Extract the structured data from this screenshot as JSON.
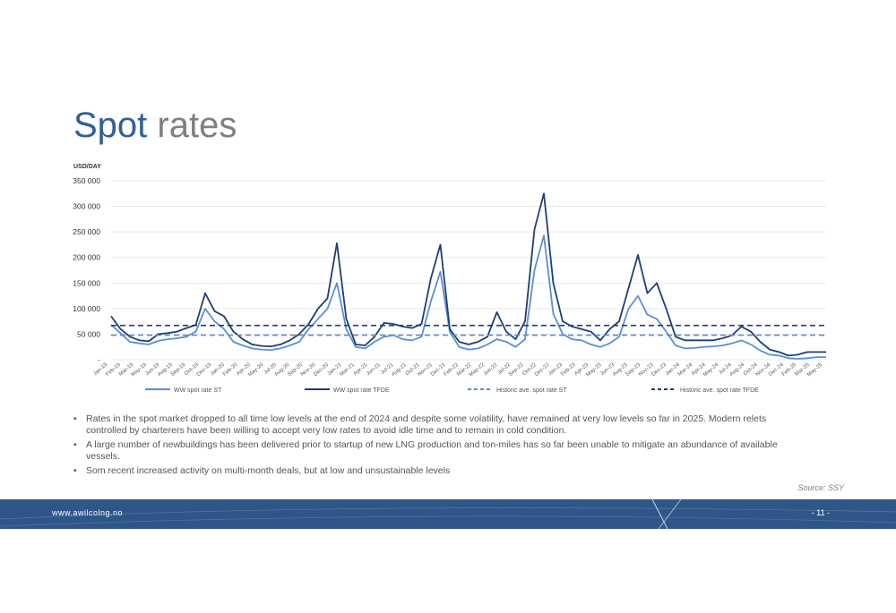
{
  "slide": {
    "title_word1": "Spot",
    "title_word2": "rates",
    "bullets": [
      "Rates in the spot market dropped  to all time low levels at the end of 2024 and despite some volatility, have remained at very low levels so far in 2025. Modern relets controlled by charterers have been willing to accept very low rates to avoid idle time and to remain in cold condition.",
      "A large number of newbuildings has been delivered prior to startup of new LNG production and ton-miles has so far been unable to mitigate an abundance of available vessels.",
      "Som recent increased activity on multi-month deals, but at low and unsustainable levels"
    ],
    "source": "Source: SSY"
  },
  "footer": {
    "url": "www.awilcolng.no",
    "page": "- 11 -"
  },
  "colors": {
    "title_blue": "#2f5f97",
    "title_grey": "#7f7f7f",
    "series_st": "#5b8fcf",
    "series_tfde": "#1f3f73",
    "footer_bg": "#2f5689"
  },
  "chart_data": {
    "type": "line",
    "ylabel": "USD/DAY",
    "ylim": [
      0,
      350000
    ],
    "yticks": [
      0,
      50000,
      100000,
      150000,
      200000,
      250000,
      300000,
      350000
    ],
    "ytick_labels": [
      "-",
      "50 000",
      "100 000",
      "150 000",
      "200 000",
      "250 000",
      "300 000",
      "350 000"
    ],
    "grid": true,
    "legend_position": "bottom",
    "x_tick_labels": [
      "Jan-19",
      "Feb-19",
      "Mar-19",
      "May-19",
      "Jun-19",
      "Aug-19",
      "Sep-19",
      "Oct-19",
      "Dec-19",
      "Jan-20",
      "Feb-20",
      "Apr-20",
      "May-20",
      "Jul-20",
      "Aug-20",
      "Sep-20",
      "Nov-20",
      "Dec-20",
      "Jan-21",
      "Mar-21",
      "Apr-21",
      "Jun-21",
      "Jul-21",
      "Aug-21",
      "Oct-21",
      "Nov-21",
      "Dec-21",
      "Feb-22",
      "Mar-22",
      "May-22",
      "Jun-22",
      "Jul-22",
      "Sep-22",
      "Oct-22",
      "Dec-22",
      "Jan-23",
      "Feb-23",
      "Apr-23",
      "May-23",
      "Jun-23",
      "Aug-23",
      "Sep-23",
      "Nov-23",
      "Dec-23",
      "Jan-24",
      "Mar-24",
      "Apr-24",
      "May-24",
      "Jul-24",
      "Aug-24",
      "Oct-24",
      "Nov-24",
      "Dec-24",
      "Feb-25",
      "Mar-25",
      "May-25"
    ],
    "x_start": "2019-01",
    "x_end": "2025-05",
    "series": [
      {
        "name": "WW spot rate ST",
        "style": "solid",
        "points": [
          [
            "2019-01",
            68000
          ],
          [
            "2019-02",
            52000
          ],
          [
            "2019-03",
            35000
          ],
          [
            "2019-04",
            32000
          ],
          [
            "2019-05",
            30000
          ],
          [
            "2019-06",
            37000
          ],
          [
            "2019-07",
            40000
          ],
          [
            "2019-08",
            42000
          ],
          [
            "2019-09",
            45000
          ],
          [
            "2019-10",
            55000
          ],
          [
            "2019-11",
            100000
          ],
          [
            "2019-12",
            75000
          ],
          [
            "2020-01",
            60000
          ],
          [
            "2020-02",
            35000
          ],
          [
            "2020-03",
            28000
          ],
          [
            "2020-04",
            22000
          ],
          [
            "2020-05",
            20000
          ],
          [
            "2020-06",
            19000
          ],
          [
            "2020-07",
            22000
          ],
          [
            "2020-08",
            28000
          ],
          [
            "2020-09",
            35000
          ],
          [
            "2020-10",
            60000
          ],
          [
            "2020-11",
            80000
          ],
          [
            "2020-12",
            100000
          ],
          [
            "2021-01",
            150000
          ],
          [
            "2021-02",
            60000
          ],
          [
            "2021-03",
            25000
          ],
          [
            "2021-04",
            22000
          ],
          [
            "2021-05",
            35000
          ],
          [
            "2021-06",
            45000
          ],
          [
            "2021-07",
            48000
          ],
          [
            "2021-08",
            40000
          ],
          [
            "2021-09",
            38000
          ],
          [
            "2021-10",
            45000
          ],
          [
            "2021-11",
            115000
          ],
          [
            "2021-12",
            172000
          ],
          [
            "2022-01",
            55000
          ],
          [
            "2022-02",
            25000
          ],
          [
            "2022-03",
            20000
          ],
          [
            "2022-04",
            22000
          ],
          [
            "2022-05",
            30000
          ],
          [
            "2022-06",
            40000
          ],
          [
            "2022-07",
            35000
          ],
          [
            "2022-08",
            25000
          ],
          [
            "2022-09",
            40000
          ],
          [
            "2022-10",
            175000
          ],
          [
            "2022-11",
            243000
          ],
          [
            "2022-12",
            90000
          ],
          [
            "2023-01",
            50000
          ],
          [
            "2023-02",
            40000
          ],
          [
            "2023-03",
            38000
          ],
          [
            "2023-04",
            30000
          ],
          [
            "2023-05",
            25000
          ],
          [
            "2023-06",
            32000
          ],
          [
            "2023-07",
            45000
          ],
          [
            "2023-08",
            100000
          ],
          [
            "2023-09",
            125000
          ],
          [
            "2023-10",
            88000
          ],
          [
            "2023-11",
            80000
          ],
          [
            "2023-12",
            55000
          ],
          [
            "2024-01",
            28000
          ],
          [
            "2024-02",
            22000
          ],
          [
            "2024-03",
            23000
          ],
          [
            "2024-04",
            25000
          ],
          [
            "2024-05",
            26000
          ],
          [
            "2024-06",
            28000
          ],
          [
            "2024-07",
            32000
          ],
          [
            "2024-08",
            38000
          ],
          [
            "2024-09",
            30000
          ],
          [
            "2024-10",
            18000
          ],
          [
            "2024-11",
            10000
          ],
          [
            "2024-12",
            8000
          ],
          [
            "2025-01",
            3000
          ],
          [
            "2025-02",
            2000
          ],
          [
            "2025-03",
            3000
          ],
          [
            "2025-04",
            5000
          ],
          [
            "2025-05",
            5000
          ]
        ]
      },
      {
        "name": "WW spot rate TFDE",
        "style": "solid",
        "points": [
          [
            "2019-01",
            85000
          ],
          [
            "2019-02",
            60000
          ],
          [
            "2019-03",
            45000
          ],
          [
            "2019-04",
            38000
          ],
          [
            "2019-05",
            36000
          ],
          [
            "2019-06",
            50000
          ],
          [
            "2019-07",
            52000
          ],
          [
            "2019-08",
            55000
          ],
          [
            "2019-09",
            62000
          ],
          [
            "2019-10",
            68000
          ],
          [
            "2019-11",
            130000
          ],
          [
            "2019-12",
            95000
          ],
          [
            "2020-01",
            85000
          ],
          [
            "2020-02",
            55000
          ],
          [
            "2020-03",
            40000
          ],
          [
            "2020-04",
            30000
          ],
          [
            "2020-05",
            27000
          ],
          [
            "2020-06",
            26000
          ],
          [
            "2020-07",
            30000
          ],
          [
            "2020-08",
            38000
          ],
          [
            "2020-09",
            50000
          ],
          [
            "2020-10",
            70000
          ],
          [
            "2020-11",
            100000
          ],
          [
            "2020-12",
            120000
          ],
          [
            "2021-01",
            228000
          ],
          [
            "2021-02",
            80000
          ],
          [
            "2021-03",
            30000
          ],
          [
            "2021-04",
            28000
          ],
          [
            "2021-05",
            45000
          ],
          [
            "2021-06",
            72000
          ],
          [
            "2021-07",
            70000
          ],
          [
            "2021-08",
            65000
          ],
          [
            "2021-09",
            62000
          ],
          [
            "2021-10",
            70000
          ],
          [
            "2021-11",
            160000
          ],
          [
            "2021-12",
            225000
          ],
          [
            "2022-01",
            60000
          ],
          [
            "2022-02",
            35000
          ],
          [
            "2022-03",
            30000
          ],
          [
            "2022-04",
            35000
          ],
          [
            "2022-05",
            45000
          ],
          [
            "2022-06",
            93000
          ],
          [
            "2022-07",
            55000
          ],
          [
            "2022-08",
            40000
          ],
          [
            "2022-09",
            75000
          ],
          [
            "2022-10",
            255000
          ],
          [
            "2022-11",
            325000
          ],
          [
            "2022-12",
            150000
          ],
          [
            "2023-01",
            75000
          ],
          [
            "2023-02",
            65000
          ],
          [
            "2023-03",
            60000
          ],
          [
            "2023-04",
            55000
          ],
          [
            "2023-05",
            38000
          ],
          [
            "2023-06",
            60000
          ],
          [
            "2023-07",
            75000
          ],
          [
            "2023-08",
            140000
          ],
          [
            "2023-09",
            205000
          ],
          [
            "2023-10",
            130000
          ],
          [
            "2023-11",
            150000
          ],
          [
            "2023-12",
            100000
          ],
          [
            "2024-01",
            45000
          ],
          [
            "2024-02",
            38000
          ],
          [
            "2024-03",
            38000
          ],
          [
            "2024-04",
            38000
          ],
          [
            "2024-05",
            38000
          ],
          [
            "2024-06",
            42000
          ],
          [
            "2024-07",
            48000
          ],
          [
            "2024-08",
            65000
          ],
          [
            "2024-09",
            55000
          ],
          [
            "2024-10",
            35000
          ],
          [
            "2024-11",
            20000
          ],
          [
            "2024-12",
            15000
          ],
          [
            "2025-01",
            8000
          ],
          [
            "2025-02",
            10000
          ],
          [
            "2025-03",
            15000
          ],
          [
            "2025-04",
            15000
          ],
          [
            "2025-05",
            15000
          ]
        ]
      },
      {
        "name": "Historic ave. spot rate ST",
        "style": "dashed",
        "constant": 48000
      },
      {
        "name": "Historic ave. spot rate  TFDE",
        "style": "dashed",
        "constant": 67000
      }
    ]
  }
}
